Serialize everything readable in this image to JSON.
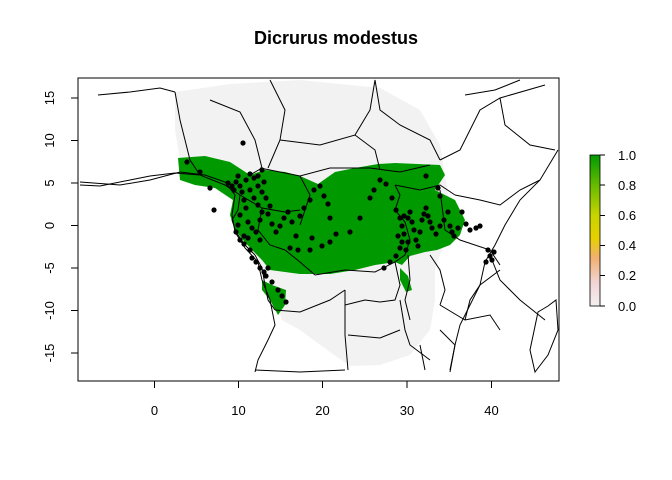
{
  "title": "Dicrurus modestus",
  "map": {
    "x_ticks": [
      "0",
      "10",
      "20",
      "30",
      "40"
    ],
    "y_ticks": [
      "15",
      "10",
      "5",
      "0",
      "-5",
      "-10",
      "-15"
    ],
    "x_range": [
      -9,
      48
    ],
    "y_range": [
      -18.5,
      17.5
    ],
    "colors": {
      "background_land": "#f2f2f2",
      "suitable_habitat": "#009900",
      "borders": "#000000",
      "occurrence_points": "#000000"
    }
  },
  "legend": {
    "labels": [
      "1.0",
      "0.8",
      "0.6",
      "0.4",
      "0.2",
      "0.0"
    ],
    "gradient": [
      "#009900",
      "#66bb00",
      "#dddd00",
      "#f0b070",
      "#f2d6d6",
      "#f4efef"
    ]
  }
}
